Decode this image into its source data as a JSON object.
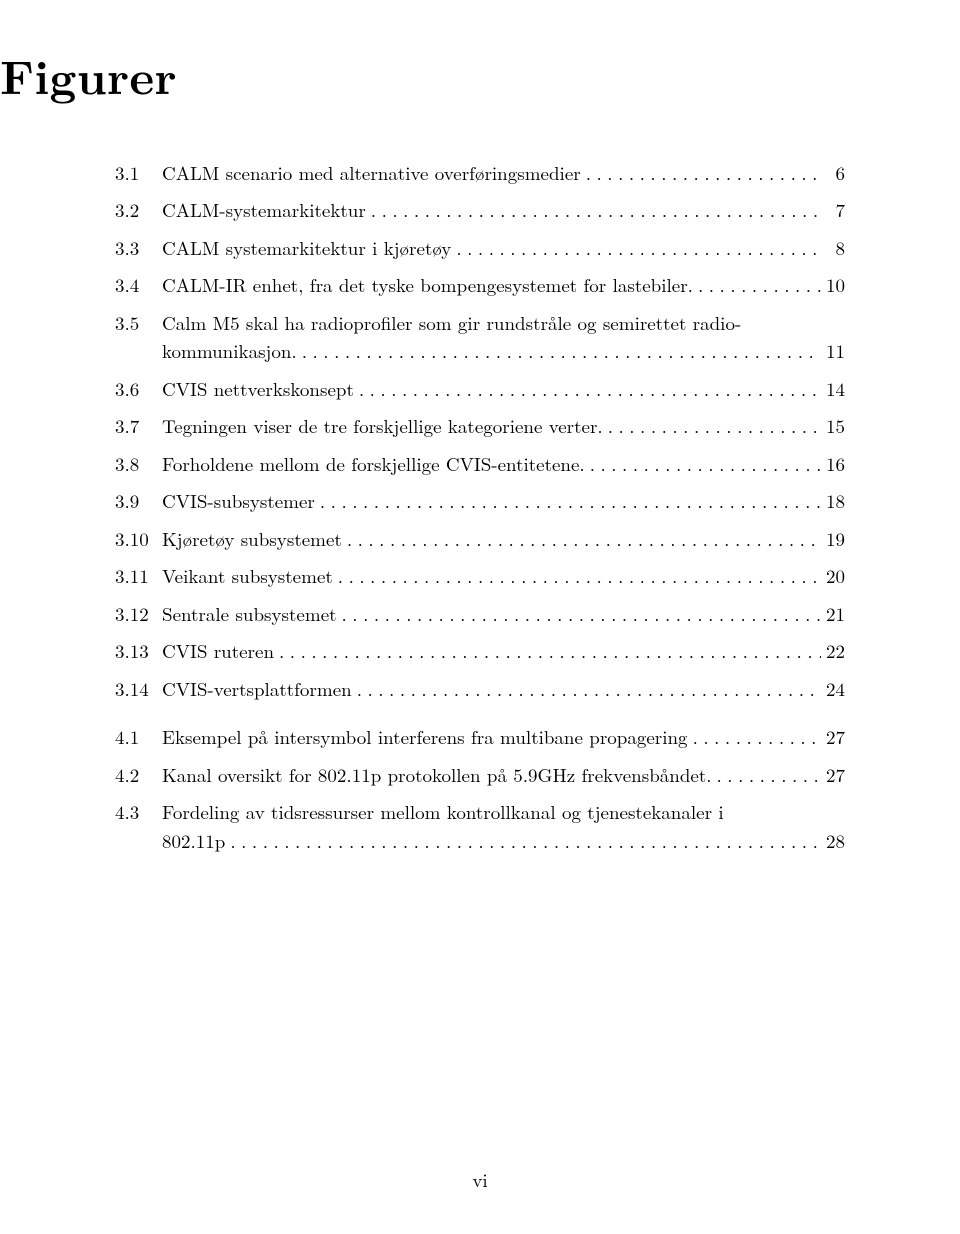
{
  "title": "Figurer",
  "footer": "vi",
  "dot_char": ".",
  "entries": [
    {
      "label": "3.1",
      "text": "CALM scenario med alternative overføringsmedier",
      "page": "6",
      "gap_before": null
    },
    {
      "label": "3.2",
      "text": "CALM-systemarkitektur",
      "page": "7",
      "gap_before": "small"
    },
    {
      "label": "3.3",
      "text": "CALM systemarkitektur i kjøretøy",
      "page": "8",
      "gap_before": "small"
    },
    {
      "label": "3.4",
      "text": "CALM-IR enhet, fra det tyske bompengesystemet for lastebiler.",
      "page": "10",
      "gap_before": "small"
    },
    {
      "label": "3.5",
      "text_line1": "Calm M5 skal ha radioprofiler som gir rundstråle og semirettet radio-",
      "text_line2": "kommunikasjon.",
      "page": "11",
      "gap_before": "small",
      "multiline": true
    },
    {
      "label": "3.6",
      "text": "CVIS nettverkskonsept",
      "page": "14",
      "gap_before": "small"
    },
    {
      "label": "3.7",
      "text": "Tegningen viser de tre forskjellige kategoriene verter.",
      "page": "15",
      "gap_before": "small"
    },
    {
      "label": "3.8",
      "text": "Forholdene mellom de forskjellige CVIS-entitetene.",
      "page": "16",
      "gap_before": "small"
    },
    {
      "label": "3.9",
      "text": "CVIS-subsystemer",
      "page": "18",
      "gap_before": "small"
    },
    {
      "label": "3.10",
      "text": "Kjøretøy subsystemet",
      "page": "19",
      "gap_before": "small"
    },
    {
      "label": "3.11",
      "text": "Veikant subsystemet",
      "page": "20",
      "gap_before": "small"
    },
    {
      "label": "3.12",
      "text": "Sentrale subsystemet",
      "page": "21",
      "gap_before": "small"
    },
    {
      "label": "3.13",
      "text": "CVIS ruteren",
      "page": "22",
      "gap_before": "small"
    },
    {
      "label": "3.14",
      "text": "CVIS-vertsplattformen",
      "page": "24",
      "gap_before": "small"
    },
    {
      "label": "4.1",
      "text": "Eksempel på intersymbol interferens fra multibane propagering",
      "page": "27",
      "gap_before": "group"
    },
    {
      "label": "4.2",
      "text": "Kanal oversikt for 802.11p protokollen på 5.9GHz frekvensbåndet.",
      "page": "27",
      "gap_before": "small"
    },
    {
      "label": "4.3",
      "text_line1": "Fordeling av tidsressurser mellom kontrollkanal og tjenestekanaler i",
      "text_line2": "802.11p",
      "page": "28",
      "gap_before": "small",
      "multiline": true
    }
  ]
}
